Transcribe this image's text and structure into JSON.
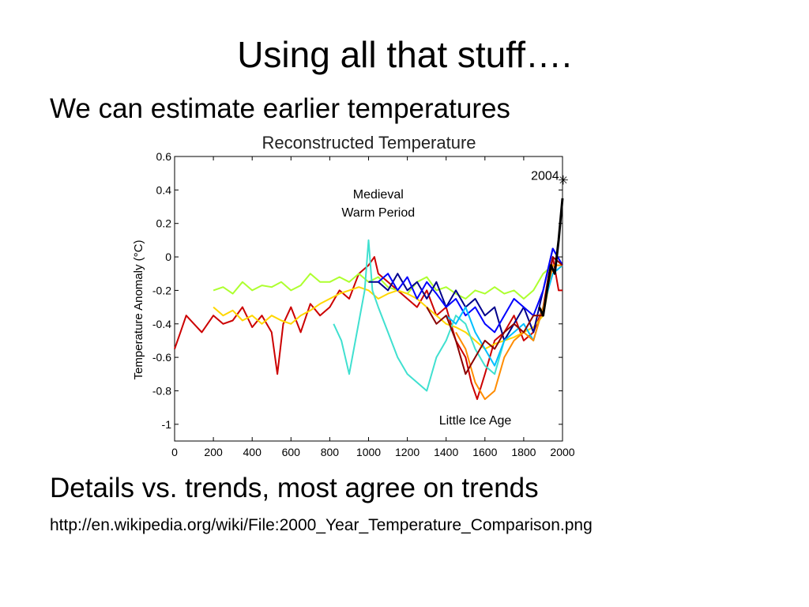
{
  "slide": {
    "title": "Using all that stuff….",
    "bullets": [
      "We can estimate  earlier temperatures",
      "Details vs. trends, most agree on trends",
      "http://en.wikipedia.org/wiki/File:2000_Year_Temperature_Comparison.png"
    ]
  },
  "chart_data": {
    "type": "line",
    "title": "Reconstructed Temperature",
    "xlabel": "",
    "ylabel": "Temperature Anomaly (°C)",
    "xlim": [
      0,
      2000
    ],
    "ylim": [
      -1.1,
      0.6
    ],
    "x_ticks": [
      0,
      200,
      400,
      600,
      800,
      1000,
      1200,
      1400,
      1600,
      1800,
      2000
    ],
    "y_ticks": [
      0.6,
      0.4,
      0.2,
      0,
      -0.2,
      -0.4,
      -0.6,
      -0.8,
      -1
    ],
    "annotations": [
      {
        "text": "Medieval",
        "x": 1050,
        "y": 0.35
      },
      {
        "text": "Warm Period",
        "x": 1050,
        "y": 0.24
      },
      {
        "text": "Little Ice Age",
        "x": 1550,
        "y": -1.0
      },
      {
        "text": "2004",
        "x": 1910,
        "y": 0.46
      }
    ],
    "marker": {
      "label": "2004",
      "x": 2004,
      "y": 0.46,
      "symbol": "✳"
    },
    "grid": false,
    "series": [
      {
        "color": "#cc0000",
        "x": [
          0,
          30,
          60,
          100,
          140,
          200,
          250,
          300,
          350,
          400,
          450,
          500,
          530,
          560,
          600,
          650,
          700,
          750,
          800,
          850,
          900,
          950,
          1000,
          1030,
          1050,
          1100,
          1150,
          1200,
          1250,
          1300,
          1350,
          1400,
          1450,
          1500,
          1530,
          1560,
          1600,
          1650,
          1700,
          1750,
          1800,
          1850,
          1900,
          1930,
          1950,
          1980,
          2000
        ],
        "values": [
          -0.55,
          -0.45,
          -0.35,
          -0.4,
          -0.45,
          -0.35,
          -0.4,
          -0.38,
          -0.3,
          -0.42,
          -0.35,
          -0.45,
          -0.7,
          -0.4,
          -0.3,
          -0.45,
          -0.28,
          -0.35,
          -0.3,
          -0.2,
          -0.25,
          -0.1,
          -0.05,
          0.0,
          -0.1,
          -0.15,
          -0.2,
          -0.25,
          -0.3,
          -0.2,
          -0.35,
          -0.3,
          -0.5,
          -0.6,
          -0.75,
          -0.85,
          -0.7,
          -0.5,
          -0.45,
          -0.35,
          -0.5,
          -0.45,
          -0.3,
          -0.1,
          0.0,
          -0.2,
          -0.2
        ]
      },
      {
        "color": "#adff2f",
        "x": [
          200,
          250,
          300,
          350,
          400,
          450,
          500,
          550,
          600,
          650,
          700,
          750,
          800,
          850,
          900,
          950,
          1000,
          1050,
          1100,
          1150,
          1200,
          1250,
          1300,
          1350,
          1400,
          1450,
          1500,
          1550,
          1600,
          1650,
          1700,
          1750,
          1800,
          1850,
          1900,
          1950,
          2000
        ],
        "values": [
          -0.2,
          -0.18,
          -0.22,
          -0.15,
          -0.2,
          -0.17,
          -0.18,
          -0.15,
          -0.2,
          -0.17,
          -0.1,
          -0.15,
          -0.15,
          -0.12,
          -0.15,
          -0.1,
          -0.15,
          -0.12,
          -0.18,
          -0.2,
          -0.22,
          -0.15,
          -0.12,
          -0.2,
          -0.18,
          -0.22,
          -0.25,
          -0.2,
          -0.22,
          -0.18,
          -0.22,
          -0.2,
          -0.25,
          -0.2,
          -0.1,
          -0.05,
          -0.05
        ]
      },
      {
        "color": "#ffd700",
        "x": [
          200,
          250,
          300,
          350,
          400,
          450,
          500,
          550,
          600,
          650,
          700,
          750,
          800,
          850,
          900,
          950,
          1000,
          1050,
          1100,
          1150,
          1200,
          1250,
          1300,
          1350,
          1400,
          1450,
          1500,
          1550,
          1600,
          1650,
          1700,
          1750,
          1800,
          1850,
          1900,
          1950,
          2000
        ],
        "values": [
          -0.3,
          -0.35,
          -0.32,
          -0.38,
          -0.35,
          -0.4,
          -0.35,
          -0.38,
          -0.4,
          -0.35,
          -0.32,
          -0.28,
          -0.25,
          -0.22,
          -0.2,
          -0.18,
          -0.2,
          -0.25,
          -0.22,
          -0.2,
          -0.22,
          -0.25,
          -0.3,
          -0.35,
          -0.4,
          -0.42,
          -0.45,
          -0.5,
          -0.55,
          -0.52,
          -0.5,
          -0.48,
          -0.45,
          -0.42,
          -0.35,
          -0.05,
          -0.05
        ]
      },
      {
        "color": "#40e0d0",
        "x": [
          820,
          860,
          900,
          940,
          980,
          1000,
          1020,
          1050,
          1100,
          1150,
          1200,
          1250,
          1300,
          1350,
          1400,
          1450,
          1500,
          1550,
          1600,
          1650,
          1700,
          1750
        ],
        "values": [
          -0.4,
          -0.5,
          -0.7,
          -0.45,
          -0.2,
          0.1,
          -0.2,
          -0.3,
          -0.45,
          -0.6,
          -0.7,
          -0.75,
          -0.8,
          -0.6,
          -0.5,
          -0.35,
          -0.4,
          -0.55,
          -0.65,
          -0.7,
          -0.5,
          -0.4
        ]
      },
      {
        "color": "#00008b",
        "x": [
          1000,
          1050,
          1100,
          1150,
          1200,
          1250,
          1300,
          1350,
          1400,
          1450,
          1500,
          1550,
          1600,
          1650,
          1700,
          1750,
          1800,
          1850,
          1900,
          1950,
          2000
        ],
        "values": [
          -0.15,
          -0.15,
          -0.2,
          -0.1,
          -0.2,
          -0.15,
          -0.25,
          -0.15,
          -0.3,
          -0.2,
          -0.3,
          -0.25,
          -0.35,
          -0.3,
          -0.5,
          -0.4,
          -0.3,
          -0.45,
          -0.2,
          0.05,
          -0.05
        ]
      },
      {
        "color": "#0000ff",
        "x": [
          1050,
          1100,
          1150,
          1200,
          1250,
          1300,
          1350,
          1400,
          1450,
          1500,
          1550,
          1600,
          1650,
          1700,
          1750,
          1800,
          1850,
          1900,
          1950,
          2000
        ],
        "values": [
          -0.15,
          -0.1,
          -0.2,
          -0.12,
          -0.25,
          -0.15,
          -0.22,
          -0.3,
          -0.25,
          -0.35,
          -0.3,
          -0.4,
          -0.45,
          -0.35,
          -0.25,
          -0.3,
          -0.35,
          -0.2,
          0.05,
          -0.05
        ]
      },
      {
        "color": "#00bfff",
        "x": [
          1400,
          1450,
          1500,
          1550,
          1600,
          1650,
          1700,
          1750,
          1800,
          1850,
          1900,
          1950,
          2000
        ],
        "values": [
          -0.35,
          -0.4,
          -0.3,
          -0.45,
          -0.55,
          -0.65,
          -0.5,
          -0.45,
          -0.4,
          -0.5,
          -0.3,
          -0.1,
          -0.05
        ]
      },
      {
        "color": "#ff8c00",
        "x": [
          1450,
          1500,
          1550,
          1600,
          1650,
          1700,
          1750,
          1800,
          1850,
          1900,
          1950,
          2000
        ],
        "values": [
          -0.45,
          -0.55,
          -0.75,
          -0.85,
          -0.8,
          -0.6,
          -0.5,
          -0.45,
          -0.5,
          -0.3,
          -0.05,
          -0.05
        ]
      },
      {
        "color": "#8b0000",
        "x": [
          1300,
          1350,
          1400,
          1450,
          1500,
          1550,
          1600,
          1650,
          1700,
          1750,
          1800,
          1850,
          1900,
          1950,
          2000
        ],
        "values": [
          -0.3,
          -0.4,
          -0.35,
          -0.5,
          -0.7,
          -0.6,
          -0.5,
          -0.55,
          -0.45,
          -0.4,
          -0.45,
          -0.35,
          -0.35,
          0.0,
          -0.05
        ]
      },
      {
        "color": "#000000",
        "x": [
          1880,
          1900,
          1920,
          1940,
          1960,
          1980,
          2000
        ],
        "values": [
          -0.3,
          -0.35,
          -0.2,
          -0.05,
          -0.1,
          0.1,
          0.35
        ]
      }
    ]
  }
}
